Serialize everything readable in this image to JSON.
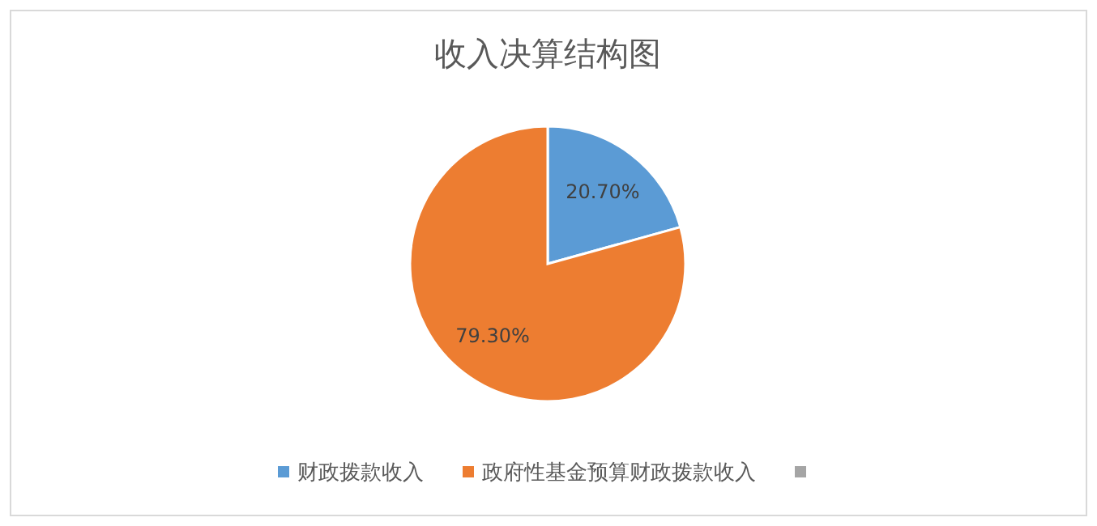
{
  "chart_data": {
    "type": "pie",
    "title": "收入决算结构图",
    "categories": [
      "财政拨款收入",
      "政府性基金预算财政拨款收入",
      null
    ],
    "values": [
      20.7,
      79.3,
      0
    ],
    "colors": [
      "#5b9bd5",
      "#ed7d31",
      "#a5a5a5"
    ],
    "value_labels": [
      "20.70%",
      "79.30%",
      null
    ],
    "legend": "bottom"
  }
}
